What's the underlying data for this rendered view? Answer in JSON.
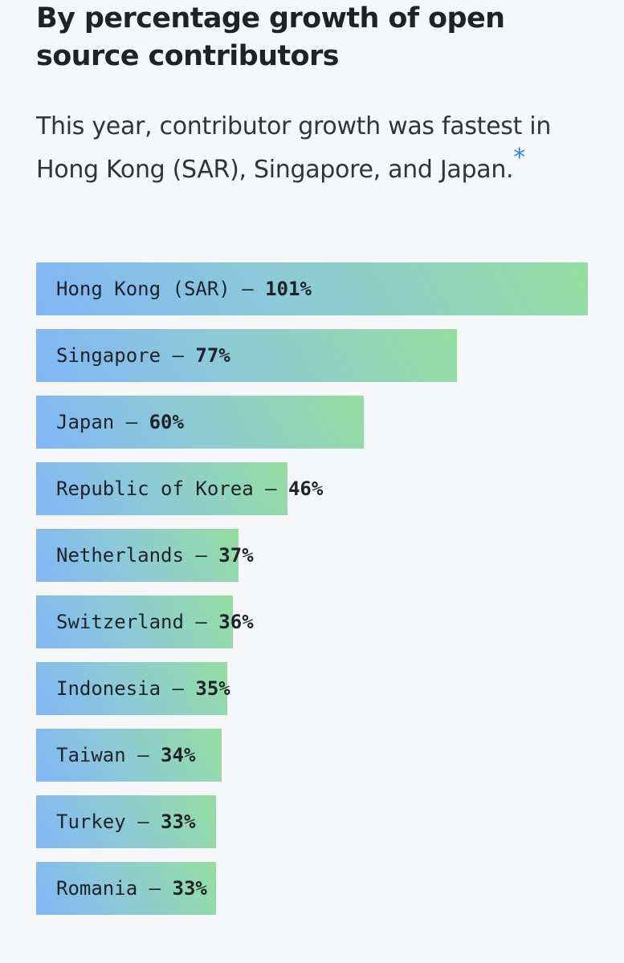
{
  "header": {
    "title": "By percentage growth of open source contributors",
    "subtitle": "This year, contributor growth was fastest in Hong Kong (SAR), Singapore, and Japan.",
    "footnote_marker": "*"
  },
  "colors": {
    "background": "#f6f7f9",
    "bar_gradient_start": "#80b6f7",
    "bar_gradient_end": "#94dea0",
    "asterisk": "#2f81f7",
    "text": "#1f2328"
  },
  "chart_data": {
    "type": "bar",
    "orientation": "horizontal",
    "title": "By percentage growth of open source contributors",
    "categories": [
      "Hong Kong (SAR)",
      "Singapore",
      "Japan",
      "Republic of Korea",
      "Netherlands",
      "Switzerland",
      "Indonesia",
      "Taiwan",
      "Turkey",
      "Romania"
    ],
    "values": [
      101,
      77,
      60,
      46,
      37,
      36,
      35,
      34,
      33,
      33
    ],
    "value_labels": [
      "101%",
      "77%",
      "60%",
      "46%",
      "37%",
      "36%",
      "35%",
      "34%",
      "33%",
      "33%"
    ],
    "separator": " — ",
    "unit": "%",
    "xlim": [
      0,
      101
    ],
    "grid": false,
    "legend": false
  }
}
